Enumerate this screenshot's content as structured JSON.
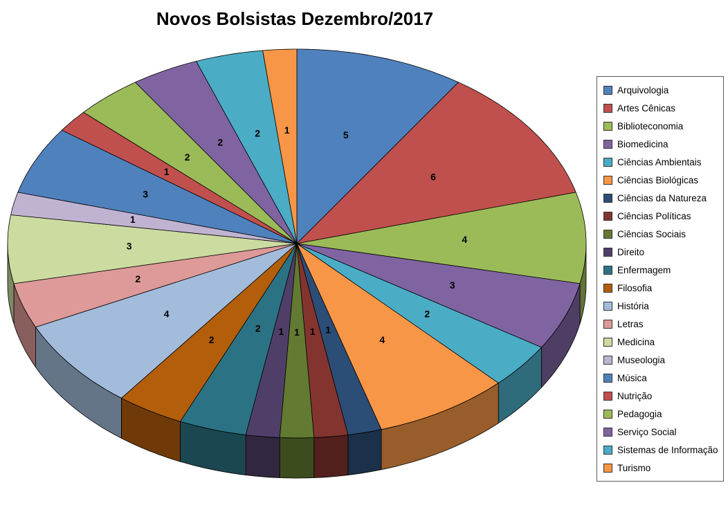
{
  "title": "Novos Bolsistas Dezembro/2017",
  "chart_data": {
    "type": "pie",
    "style": "3d-pie",
    "title": "Novos Bolsistas Dezembro/2017",
    "legend_position": "right",
    "data_labels": "values-inside-slices",
    "start_angle_deg": 0,
    "direction": "clockwise",
    "categories": [
      "Arquivologia",
      "Artes Cênicas",
      "Biblioteconomia",
      "Biomedicina",
      "Ciências Ambientais",
      "Ciências Biológicas",
      "Ciências da Natureza",
      "Ciências Políticas",
      "Ciências Sociais",
      "Direito",
      "Enfermagem",
      "Filosofia",
      "História",
      "Letras",
      "Medicina",
      "Museologia",
      "Música",
      "Nutrição",
      "Pedagogia",
      "Serviço Social",
      "Sistemas de Informação",
      "Turismo"
    ],
    "values": [
      5,
      6,
      4,
      3,
      2,
      4,
      1,
      1,
      1,
      1,
      2,
      2,
      4,
      2,
      3,
      1,
      3,
      1,
      2,
      2,
      2,
      1
    ],
    "colors": [
      "#4F81BD",
      "#C0504D",
      "#9BBB59",
      "#8064A2",
      "#4BACC6",
      "#F79646",
      "#2C4D75",
      "#84342F",
      "#627A31",
      "#4F3F68",
      "#2B7384",
      "#B35E0B",
      "#A3BCDC",
      "#DD9A98",
      "#CCDBA0",
      "#C0B3D2",
      "#4F81BD",
      "#C0504D",
      "#9BBB59",
      "#8064A2",
      "#4BACC6",
      "#F79646"
    ]
  }
}
